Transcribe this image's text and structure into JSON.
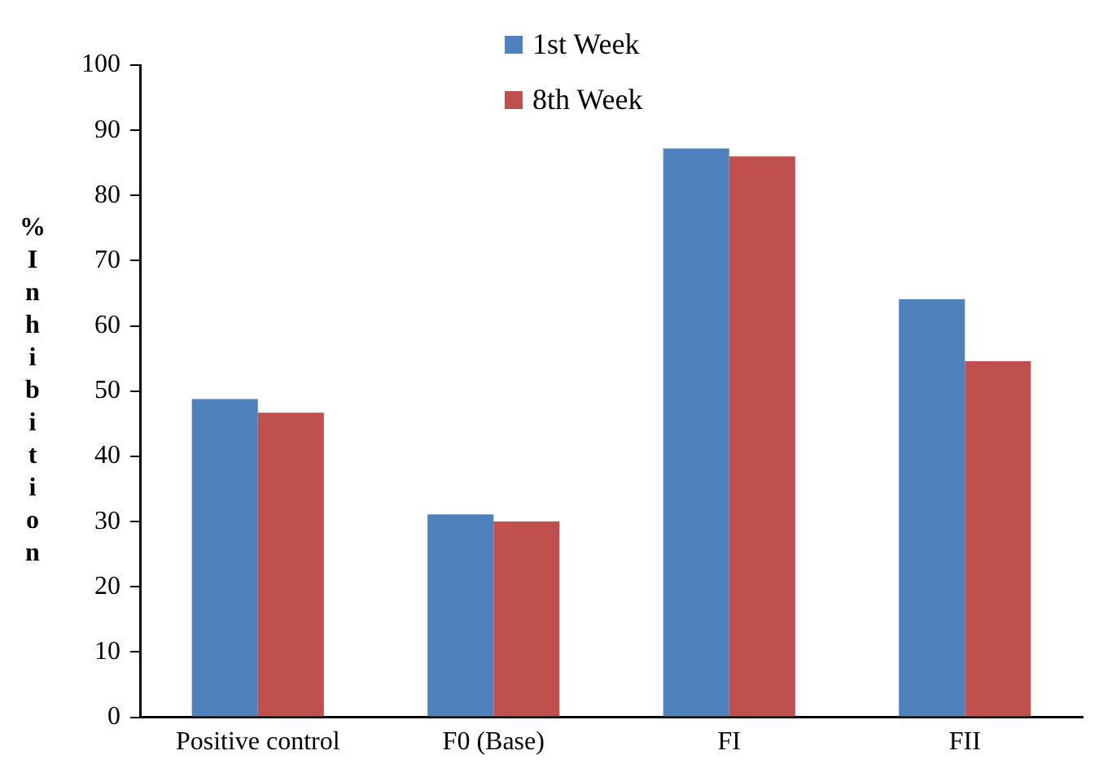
{
  "chart_data": {
    "type": "bar",
    "ylabel": "% Inhibition",
    "categories": [
      "Positive control",
      "F0 (Base)",
      "FI",
      "FII"
    ],
    "series": [
      {
        "name": "1st Week",
        "color": "#4f81bd",
        "values": [
          48.8,
          31.1,
          87.2,
          64.1
        ]
      },
      {
        "name": "8th Week",
        "color": "#c0504d",
        "values": [
          46.7,
          30.0,
          86.0,
          54.6
        ]
      }
    ],
    "ylim": [
      0,
      100
    ],
    "yticks": [
      0,
      10,
      20,
      30,
      40,
      50,
      60,
      70,
      80,
      90,
      100
    ],
    "grid": false,
    "legend": "top"
  }
}
